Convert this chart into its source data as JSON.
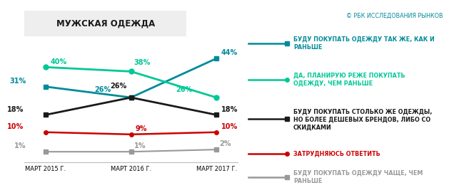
{
  "title": "МУЖСКАЯ ОДЕЖДА",
  "copyright": "© РБК ИССЛЕДОВАНИЯ РЫНКОВ",
  "x_labels": [
    "МАРТ 2015 Г.",
    "МАРТ 2016 Г.",
    "МАРТ 2017 Г."
  ],
  "x_values": [
    0,
    1,
    2
  ],
  "series": [
    {
      "name": "БУДУ ПОКУПАТЬ ОДЕЖДУ ТАК ЖЕ, КАК И\nРАНЬШЕ",
      "values": [
        31,
        26,
        44
      ],
      "color": "#008B9A",
      "marker": "s",
      "markersize": 5,
      "linewidth": 2.0
    },
    {
      "name": "ДА, ПЛАНИРУЮ РЕЖЕ ПОКУПАТЬ\nОДЕЖДУ, ЧЕМ РАНЬШЕ",
      "values": [
        40,
        38,
        26
      ],
      "color": "#00C896",
      "marker": "o",
      "markersize": 5,
      "linewidth": 2.0
    },
    {
      "name": "БУДУ ПОКУПАТЬ СТОЛЬКО ЖЕ ОДЕЖДЫ,\nНО БОЛЕЕ ДЕШЕВЫХ БРЕНДОВ, ЛИБО СО\nСКИДКАМИ",
      "values": [
        18,
        26,
        18
      ],
      "color": "#1a1a1a",
      "marker": "s",
      "markersize": 5,
      "linewidth": 2.0
    },
    {
      "name": "ЗАТРУДНЯЮСЬ ОТВЕТИТЬ",
      "values": [
        10,
        9,
        10
      ],
      "color": "#CC0000",
      "marker": "o",
      "markersize": 4,
      "linewidth": 1.8
    },
    {
      "name": "БУДУ ПОКУПАТЬ ОДЕЖДУ ЧАЩЕ, ЧЕМ\nРАНЬШЕ",
      "values": [
        1,
        1,
        2
      ],
      "color": "#999999",
      "marker": "s",
      "markersize": 4,
      "linewidth": 1.5
    }
  ],
  "background_color": "#ffffff",
  "title_bg": "#eeeeee",
  "ylim": [
    -4,
    56
  ],
  "xlim": [
    -0.25,
    2.25
  ]
}
